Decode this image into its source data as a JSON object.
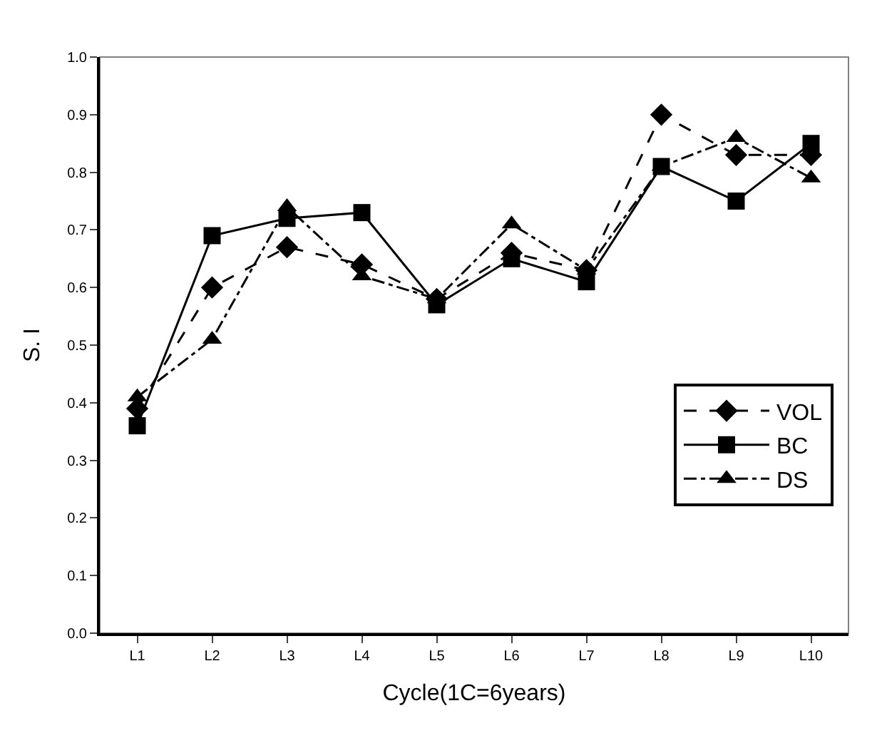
{
  "chart_data": {
    "type": "line",
    "xlabel": "Cycle(1C=6years)",
    "ylabel": "S. I",
    "categories": [
      "L1",
      "L2",
      "L3",
      "L4",
      "L5",
      "L6",
      "L7",
      "L8",
      "L9",
      "L10"
    ],
    "series": [
      {
        "name": "VOL",
        "color": "#000000",
        "marker": "diamond",
        "line_style": "dashed",
        "values": [
          0.39,
          0.6,
          0.67,
          0.64,
          0.58,
          0.66,
          0.63,
          0.9,
          0.83,
          0.83
        ]
      },
      {
        "name": "BC",
        "color": "#000000",
        "marker": "square",
        "line_style": "solid",
        "values": [
          0.36,
          0.69,
          0.72,
          0.73,
          0.57,
          0.65,
          0.61,
          0.81,
          0.75,
          0.85
        ]
      },
      {
        "name": "DS",
        "color": "#000000",
        "marker": "triangle",
        "line_style": "dashdot",
        "values": [
          0.41,
          0.51,
          0.74,
          0.62,
          0.58,
          0.71,
          0.63,
          0.81,
          0.86,
          0.79
        ]
      }
    ],
    "ylim": [
      0,
      1.0
    ],
    "yticks": [
      {
        "value": 0,
        "label": "0.0"
      },
      0.1,
      0.2,
      0.3,
      0.4,
      0.5,
      0.6,
      0.7,
      0.8,
      0.9,
      {
        "value": 1.0,
        "label": "1.0"
      }
    ],
    "grid": false,
    "legend": "bottom right"
  }
}
